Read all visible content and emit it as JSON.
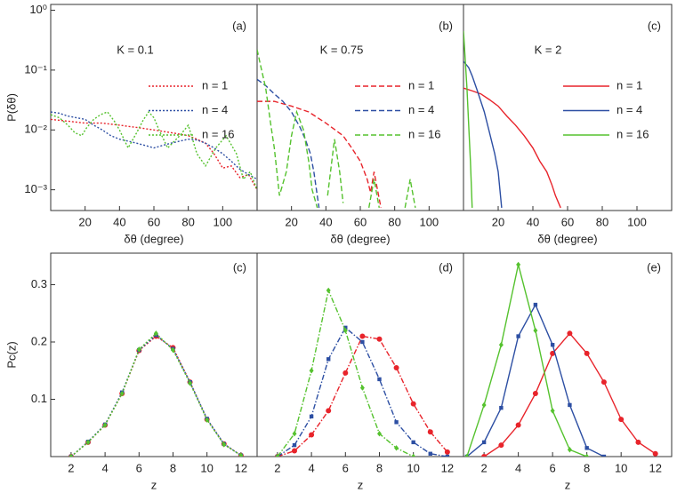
{
  "chart_data": [
    {
      "type": "line",
      "panel_label": "(a)",
      "annotation": "K = 0.1",
      "x_label": "δθ (degree)",
      "y_label": "P(δθ)",
      "log_y": true,
      "line_style": "dotted",
      "markers": false,
      "xlim": [
        0,
        120
      ],
      "xticks": [
        20,
        40,
        60,
        80,
        100
      ],
      "ylim": [
        0.00045,
        1.25
      ],
      "yticks": [
        {
          "value": 1,
          "label": "10⁰"
        },
        {
          "value": 0.1,
          "label": "10⁻¹"
        },
        {
          "value": 0.01,
          "label": "10⁻²"
        },
        {
          "value": 0.001,
          "label": "10⁻³"
        }
      ],
      "series": [
        {
          "name": "n = 1",
          "color": "#e8242b",
          "x": [
            0,
            10,
            20,
            30,
            40,
            50,
            60,
            70,
            80,
            85,
            90,
            95,
            100,
            105,
            110,
            115,
            120
          ],
          "values": [
            0.015,
            0.014,
            0.013,
            0.013,
            0.012,
            0.011,
            0.01,
            0.009,
            0.008,
            0.007,
            0.006,
            0.004,
            0.0023,
            0.0025,
            0.0016,
            0.0018,
            0.001
          ]
        },
        {
          "name": "n = 4",
          "color": "#2d4fa3",
          "x": [
            0,
            5,
            10,
            15,
            20,
            25,
            30,
            35,
            40,
            45,
            50,
            55,
            60,
            65,
            70,
            75,
            80,
            85,
            90,
            95,
            100,
            105,
            110,
            115,
            120
          ],
          "values": [
            0.02,
            0.019,
            0.017,
            0.016,
            0.015,
            0.012,
            0.01,
            0.008,
            0.007,
            0.0065,
            0.006,
            0.0055,
            0.005,
            0.0055,
            0.006,
            0.0065,
            0.007,
            0.0068,
            0.006,
            0.005,
            0.004,
            0.003,
            0.0022,
            0.0018,
            0.0015
          ]
        },
        {
          "name": "n = 16",
          "color": "#55c22e",
          "x": [
            0,
            5,
            10,
            14,
            18,
            21,
            25,
            29,
            33,
            37,
            40,
            45,
            50,
            54,
            57,
            60,
            63,
            68,
            75,
            80,
            85,
            90,
            96,
            102,
            108,
            112,
            116,
            120
          ],
          "values": [
            0.018,
            0.016,
            0.012,
            0.009,
            0.008,
            0.011,
            0.015,
            0.018,
            0.02,
            0.014,
            0.01,
            0.005,
            0.009,
            0.015,
            0.02,
            0.016,
            0.01,
            0.005,
            0.008,
            0.012,
            0.004,
            0.0025,
            0.005,
            0.008,
            0.004,
            0.0015,
            0.002,
            0.001
          ]
        }
      ]
    },
    {
      "type": "line",
      "panel_label": "(b)",
      "annotation": "K = 0.75",
      "x_label": "δθ (degree)",
      "log_y": true,
      "line_style": "dashed",
      "markers": false,
      "xlim": [
        0,
        120
      ],
      "xticks": [
        20,
        40,
        60,
        80,
        100
      ],
      "ylim": [
        0.00045,
        1.25
      ],
      "series": [
        {
          "name": "n = 1",
          "color": "#e8242b",
          "x": [
            0,
            10,
            20,
            30,
            40,
            50,
            55,
            60,
            64,
            66,
            68,
            70,
            72
          ],
          "values": [
            0.03,
            0.03,
            0.025,
            0.02,
            0.013,
            0.008,
            0.005,
            0.003,
            0.0015,
            0.0009,
            0.002,
            0.001,
            0.0005
          ]
        },
        {
          "name": "n = 4",
          "color": "#2d4fa3",
          "x": [
            0,
            5,
            10,
            15,
            20,
            25,
            28,
            31,
            33,
            36
          ],
          "values": [
            0.07,
            0.055,
            0.04,
            0.03,
            0.02,
            0.011,
            0.007,
            0.004,
            0.002,
            0.0005
          ]
        },
        {
          "name": "n = 16",
          "color": "#55c22e",
          "x": [
            0,
            2,
            5,
            8,
            10,
            13,
            17,
            20,
            23,
            27,
            30,
            32,
            35,
            38,
            41,
            45,
            48,
            50,
            58,
            65,
            68,
            71,
            78,
            86,
            89,
            92
          ],
          "values": [
            0.22,
            0.12,
            0.05,
            0.012,
            0.005,
            0.0008,
            0.002,
            0.008,
            0.02,
            0.01,
            0.003,
            0.001,
            0.0005,
            null,
            0.0008,
            0.007,
            0.002,
            0.0006,
            null,
            0.0005,
            0.0015,
            0.0005,
            null,
            0.0005,
            0.0015,
            0.0005
          ]
        }
      ]
    },
    {
      "type": "line",
      "panel_label": "(c)",
      "annotation": "K = 2",
      "x_label": "δθ (degree)",
      "log_y": true,
      "line_style": "solid",
      "markers": false,
      "xlim": [
        0,
        120
      ],
      "xticks": [
        20,
        40,
        60,
        80,
        100
      ],
      "ylim": [
        0.00045,
        1.25
      ],
      "series": [
        {
          "name": "n = 1",
          "color": "#e8242b",
          "x": [
            0,
            5,
            10,
            15,
            20,
            25,
            30,
            35,
            40,
            44,
            48,
            51,
            53,
            56
          ],
          "values": [
            0.05,
            0.045,
            0.04,
            0.032,
            0.025,
            0.017,
            0.012,
            0.008,
            0.005,
            0.003,
            0.002,
            0.0012,
            0.0008,
            0.0005
          ]
        },
        {
          "name": "n = 4",
          "color": "#2d4fa3",
          "x": [
            0,
            3,
            5,
            8,
            12,
            15,
            18,
            20,
            21,
            22
          ],
          "values": [
            0.14,
            0.11,
            0.08,
            0.045,
            0.02,
            0.009,
            0.004,
            0.002,
            0.001,
            0.0005
          ]
        },
        {
          "name": "n = 16",
          "color": "#55c22e",
          "x": [
            0,
            1,
            2,
            3,
            4,
            5
          ],
          "values": [
            0.45,
            0.15,
            0.05,
            0.012,
            0.003,
            0.0005
          ]
        }
      ]
    },
    {
      "type": "line",
      "panel_label": "(c)",
      "x_label": "z",
      "y_label": "Pc(z)",
      "log_y": false,
      "line_style": "dotted",
      "markers": true,
      "xlim": [
        0.8,
        12.95
      ],
      "xticks": [
        2,
        4,
        6,
        8,
        10,
        12
      ],
      "ylim": [
        0,
        0.355
      ],
      "yticks": [
        0.1,
        0.2,
        0.3
      ],
      "series": [
        {
          "color": "#e8242b",
          "x": [
            2,
            3,
            4,
            5,
            6,
            7,
            8,
            9,
            10,
            11,
            12
          ],
          "values": [
            0,
            0.025,
            0.055,
            0.11,
            0.185,
            0.21,
            0.19,
            0.13,
            0.065,
            0.022,
            0.002
          ]
        },
        {
          "color": "#2d4fa3",
          "x": [
            2,
            3,
            4,
            5,
            6,
            7,
            8,
            9,
            10,
            11,
            12
          ],
          "values": [
            0,
            0.026,
            0.056,
            0.112,
            0.186,
            0.212,
            0.188,
            0.13,
            0.066,
            0.022,
            0.002
          ]
        },
        {
          "color": "#55c22e",
          "x": [
            2,
            3,
            4,
            5,
            6,
            7,
            8,
            9,
            10,
            11,
            12
          ],
          "values": [
            0,
            0.025,
            0.055,
            0.11,
            0.187,
            0.215,
            0.186,
            0.128,
            0.064,
            0.021,
            0.002
          ]
        }
      ]
    },
    {
      "type": "line",
      "panel_label": "(d)",
      "x_label": "z",
      "log_y": false,
      "line_style": "dashdot",
      "markers": true,
      "xlim": [
        0.8,
        12.95
      ],
      "xticks": [
        2,
        4,
        6,
        8,
        10,
        12
      ],
      "ylim": [
        0,
        0.355
      ],
      "series": [
        {
          "color": "#e8242b",
          "x": [
            2,
            3,
            4,
            5,
            6,
            7,
            8,
            9,
            10,
            11,
            12
          ],
          "values": [
            0,
            0.01,
            0.038,
            0.08,
            0.146,
            0.21,
            0.205,
            0.155,
            0.092,
            0.043,
            0.008
          ]
        },
        {
          "color": "#2d4fa3",
          "x": [
            2,
            3,
            4,
            5,
            6,
            7,
            8,
            9,
            10,
            11,
            12
          ],
          "values": [
            0,
            0.02,
            0.07,
            0.17,
            0.225,
            0.2,
            0.135,
            0.06,
            0.025,
            0.005,
            0
          ]
        },
        {
          "color": "#55c22e",
          "x": [
            2,
            3,
            4,
            5,
            6,
            7,
            8,
            9,
            10
          ],
          "values": [
            0,
            0.04,
            0.15,
            0.29,
            0.22,
            0.12,
            0.04,
            0.015,
            0
          ]
        }
      ]
    },
    {
      "type": "line",
      "panel_label": "(e)",
      "x_label": "z",
      "log_y": false,
      "line_style": "solid",
      "markers": true,
      "xlim": [
        0.8,
        12.95
      ],
      "xticks": [
        2,
        4,
        6,
        8,
        10,
        12
      ],
      "ylim": [
        0,
        0.355
      ],
      "series": [
        {
          "color": "#e8242b",
          "x": [
            2,
            3,
            4,
            5,
            6,
            7,
            8,
            9,
            10,
            11,
            12
          ],
          "values": [
            0,
            0.02,
            0.055,
            0.11,
            0.18,
            0.215,
            0.18,
            0.13,
            0.065,
            0.025,
            0.005
          ]
        },
        {
          "color": "#2d4fa3",
          "x": [
            1,
            2,
            3,
            4,
            5,
            6,
            7,
            8,
            9
          ],
          "values": [
            0,
            0.025,
            0.085,
            0.21,
            0.265,
            0.195,
            0.09,
            0.015,
            0
          ]
        },
        {
          "color": "#55c22e",
          "x": [
            1,
            2,
            3,
            4,
            5,
            6,
            7,
            8
          ],
          "values": [
            0,
            0.09,
            0.195,
            0.335,
            0.22,
            0.08,
            0.012,
            0
          ]
        }
      ]
    }
  ]
}
